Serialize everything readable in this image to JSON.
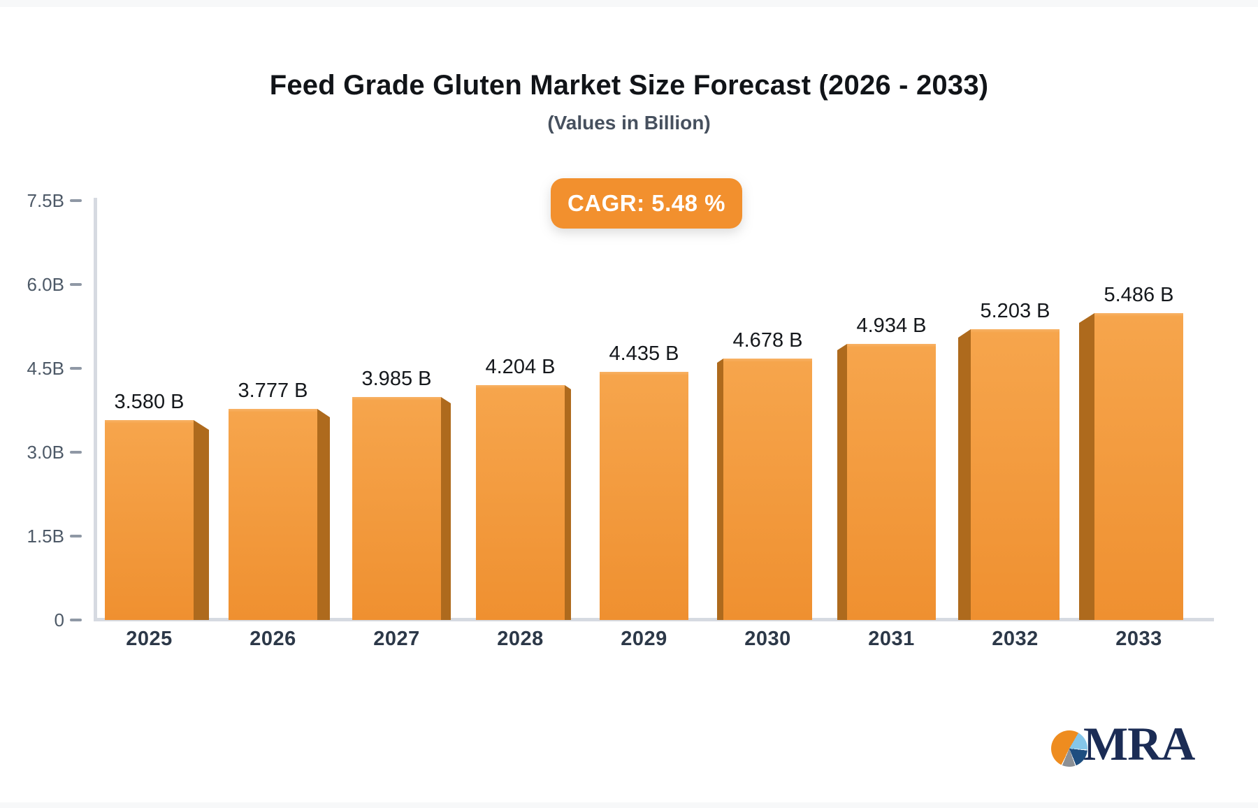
{
  "page": {
    "logo_text": "MRA"
  },
  "colors": {
    "edge_strip": "#f7f8f9",
    "title": "#111418",
    "subtitle": "#46505e",
    "badge_bg": "#f2902e",
    "axis_line": "#d6dae1",
    "tick_dash": "#8f98a5",
    "y_label": "#4d5967",
    "x_label": "#2c3848",
    "value_label": "#15181c",
    "bar_front_top": "#f6a54c",
    "bar_front_bottom": "#ef9030",
    "bar_front_highlight": "#f8b266",
    "bar_side": "#ae6a1d",
    "logo_navy": "#1b2c55",
    "logo_orange": "#ee8c1f",
    "logo_lightblue": "#85c6e9",
    "logo_blue": "#1e4e80",
    "logo_gray": "#8c9095"
  },
  "chart_data": {
    "type": "bar",
    "title": "Feed Grade Gluten Market Size Forecast (2026 - 2033)",
    "subtitle": "(Values in Billion)",
    "cagr_label": "CAGR: 5.48 %",
    "cagr_percent": 5.48,
    "categories": [
      "2025",
      "2026",
      "2027",
      "2028",
      "2029",
      "2030",
      "2031",
      "2032",
      "2033"
    ],
    "values": [
      3.58,
      3.777,
      3.985,
      4.204,
      4.435,
      4.678,
      4.934,
      5.203,
      5.486
    ],
    "value_labels": [
      "3.580 B",
      "3.777 B",
      "3.985 B",
      "4.204 B",
      "4.435 B",
      "4.678 B",
      "4.934 B",
      "5.203 B",
      "5.486 B"
    ],
    "unit": "Billion",
    "ylim": [
      0,
      7.5
    ],
    "y_tick_values": [
      7.5,
      6.0,
      4.5,
      3.0,
      1.5,
      0
    ],
    "y_tick_labels": [
      "7.5B",
      "6.0B",
      "4.5B",
      "3.0B",
      "1.5B",
      "0"
    ],
    "grid": false,
    "legend": "none",
    "bar_style": "3d-orange"
  }
}
